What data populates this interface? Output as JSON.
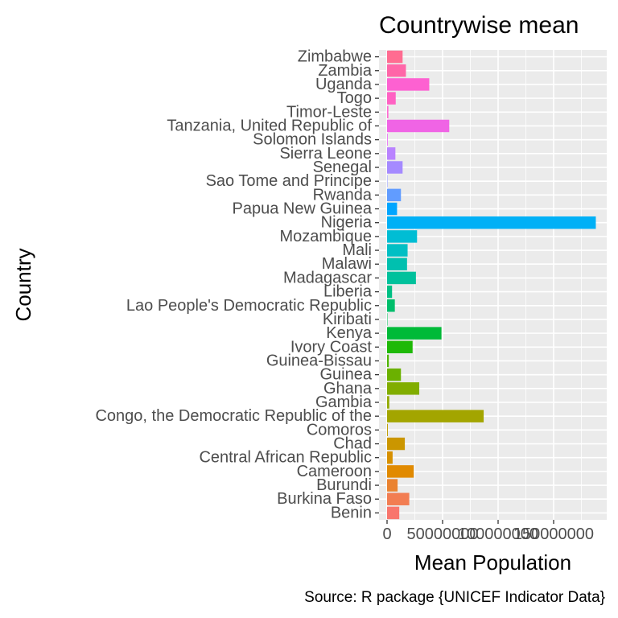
{
  "chart_data": {
    "type": "bar",
    "orientation": "horizontal",
    "title": "Countrywise mean",
    "xlabel": "Mean Population",
    "ylabel": "Country",
    "caption": "Source: R package {UNICEF Indicator Data}",
    "xlim": [
      0,
      190000000
    ],
    "xticks": [
      0,
      50000000,
      100000000,
      150000000
    ],
    "xtick_labels": [
      "0",
      "50000000",
      "100000000",
      "150000000"
    ],
    "grid": true,
    "legend": "none",
    "panel_background": "#ebebeb",
    "grid_color": "#ffffff",
    "categories": [
      "Benin",
      "Burkina Faso",
      "Burundi",
      "Cameroon",
      "Central African Republic",
      "Chad",
      "Comoros",
      "Congo, the Democratic Republic of the",
      "Gambia",
      "Ghana",
      "Guinea",
      "Guinea-Bissau",
      "Ivory Coast",
      "Kenya",
      "Kiribati",
      "Lao People's Democratic Republic",
      "Liberia",
      "Madagascar",
      "Malawi",
      "Mali",
      "Mozambique",
      "Nigeria",
      "Papua New Guinea",
      "Rwanda",
      "Sao Tome and Principe",
      "Senegal",
      "Sierra Leone",
      "Solomon Islands",
      "Tanzania, United Republic of",
      "Timor-Leste",
      "Togo",
      "Uganda",
      "Zambia",
      "Zimbabwe"
    ],
    "values": [
      11000000,
      20000000,
      9500000,
      24000000,
      5000000,
      16000000,
      700000,
      87000000,
      2000000,
      29000000,
      12500000,
      1600000,
      23000000,
      49000000,
      100000,
      7000000,
      4500000,
      26000000,
      18000000,
      18500000,
      27000000,
      188000000,
      9000000,
      12500000,
      200000,
      14000000,
      7500000,
      600000,
      56000000,
      1200000,
      7800000,
      38000000,
      17000000,
      14000000
    ],
    "colors": [
      "#F8766D",
      "#F27D52",
      "#EA8331",
      "#E18A00",
      "#D79000",
      "#CB9600",
      "#BE9C00",
      "#A3A500",
      "#93AA00",
      "#81AD00",
      "#6BB100",
      "#4EB500",
      "#1EB907",
      "#00BA38",
      "#00BC55",
      "#00BE6B",
      "#00C084",
      "#00C19C",
      "#00C0AF",
      "#00BFC4",
      "#00BDD4",
      "#00B0F6",
      "#00A5FF",
      "#619CFF",
      "#8B93FF",
      "#A58AFF",
      "#B983FF",
      "#E76BF3",
      "#F064E5",
      "#FF6BD2",
      "#FF61C3",
      "#FD61D1",
      "#FF66A8",
      "#FF6C91"
    ]
  }
}
